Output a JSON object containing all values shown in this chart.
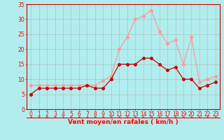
{
  "hours": [
    0,
    1,
    2,
    3,
    4,
    5,
    6,
    7,
    8,
    9,
    10,
    11,
    12,
    13,
    14,
    15,
    16,
    17,
    18,
    19,
    20,
    21,
    22,
    23
  ],
  "wind_avg": [
    5,
    7,
    7,
    7,
    7,
    7,
    7,
    8,
    7,
    7,
    10,
    15,
    15,
    15,
    17,
    17,
    15,
    13,
    14,
    10,
    10,
    7,
    8,
    9
  ],
  "wind_gust": [
    8,
    8,
    8,
    8,
    8,
    8,
    8,
    8,
    8,
    9.5,
    11,
    20,
    24,
    30,
    31,
    33,
    26,
    22,
    23,
    15,
    24,
    9,
    10,
    11
  ],
  "avg_color": "#cc0000",
  "gust_color": "#ff9999",
  "background_color": "#b2eded",
  "grid_color": "#aaaaaa",
  "xlabel": "Vent moyen/en rafales ( km/h )",
  "ylim": [
    0,
    35
  ],
  "xlim": [
    -0.5,
    23.5
  ],
  "yticks": [
    0,
    5,
    10,
    15,
    20,
    25,
    30,
    35
  ],
  "xticks": [
    0,
    1,
    2,
    3,
    4,
    5,
    6,
    7,
    8,
    9,
    10,
    11,
    12,
    13,
    14,
    15,
    16,
    17,
    18,
    19,
    20,
    21,
    22,
    23
  ],
  "tick_fontsize": 5.5,
  "xlabel_fontsize": 6.5,
  "marker_size": 2.5,
  "line_width": 0.9
}
